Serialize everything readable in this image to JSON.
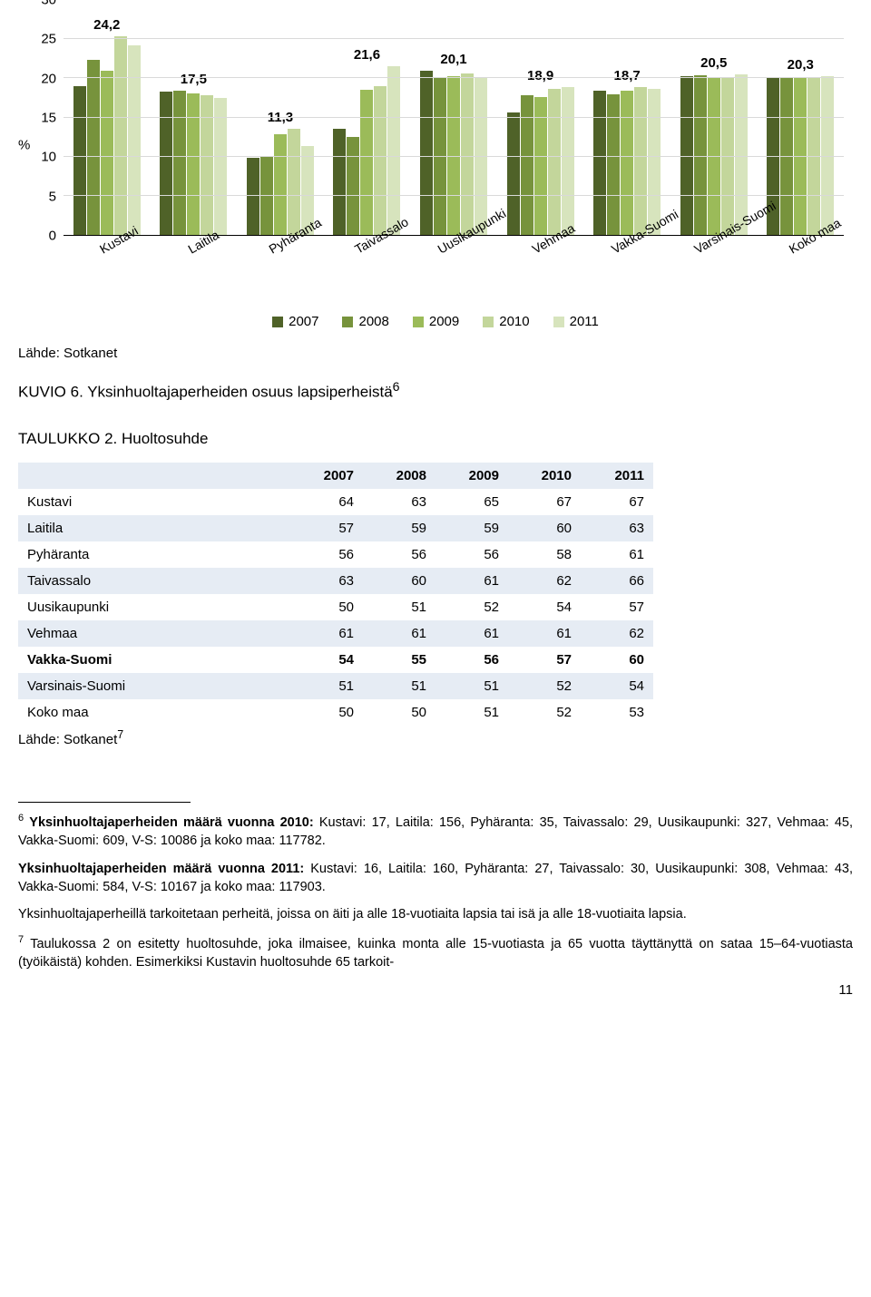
{
  "chart": {
    "type": "bar",
    "ylabel": "%",
    "ytick_step": 5,
    "ylim_max": 30,
    "grid_color": "#d9d9d9",
    "bar_colors": [
      "#4f6228",
      "#77933c",
      "#9bbb59",
      "#c3d69b",
      "#d7e4bd"
    ],
    "categories": [
      "Kustavi",
      "Laitila",
      "Pyhäranta",
      "Taivassalo",
      "Uusikaupunki",
      "Vehmaa",
      "Vakka-Suomi",
      "Varsinais-Suomi",
      "Koko maa"
    ],
    "series_names": [
      "2007",
      "2008",
      "2009",
      "2010",
      "2011"
    ],
    "groups": [
      {
        "label": "Kustavi",
        "label_value": "24,2",
        "values": [
          19.0,
          22.3,
          21.0,
          25.4,
          24.2
        ]
      },
      {
        "label": "Laitila",
        "label_value": "17,5",
        "values": [
          18.3,
          18.4,
          18.1,
          17.8,
          17.5
        ]
      },
      {
        "label": "Pyhäranta",
        "label_value": "11,3",
        "values": [
          9.9,
          10.1,
          12.9,
          13.5,
          11.3
        ]
      },
      {
        "label": "Taivassalo",
        "label_value": "21,6",
        "values": [
          13.5,
          12.5,
          18.5,
          19.0,
          21.6
        ]
      },
      {
        "label": "Uusikaupunki",
        "label_value": "20,1",
        "values": [
          21.0,
          20.2,
          20.3,
          20.6,
          20.1
        ]
      },
      {
        "label": "Vehmaa",
        "label_value": "18,9",
        "values": [
          15.6,
          17.8,
          17.6,
          18.6,
          18.9
        ]
      },
      {
        "label": "Vakka-Suomi",
        "label_value": "18,7",
        "values": [
          18.4,
          18.0,
          18.4,
          18.9,
          18.7
        ]
      },
      {
        "label": "Varsinais-Suomi",
        "label_value": "20,5",
        "values": [
          20.3,
          20.4,
          20.2,
          20.2,
          20.5
        ]
      },
      {
        "label": "Koko maa",
        "label_value": "20,3",
        "values": [
          20.0,
          20.0,
          20.1,
          20.1,
          20.3
        ]
      }
    ]
  },
  "legend": {
    "items": [
      "2007",
      "2008",
      "2009",
      "2010",
      "2011"
    ],
    "colors": [
      "#4f6228",
      "#77933c",
      "#9bbb59",
      "#c3d69b",
      "#d7e4bd"
    ]
  },
  "source_line": "Lähde: Sotkanet",
  "caption_prefix": "KUVIO 6. ",
  "caption_text": "Yksinhuoltajaperheiden osuus lapsiperheistä",
  "caption_sup": "6",
  "table_title": "TAULUKKO 2. Huoltosuhde",
  "table": {
    "header_bg": "#e6ecf4",
    "years": [
      "2007",
      "2008",
      "2009",
      "2010",
      "2011"
    ],
    "rows": [
      {
        "name": "Kustavi",
        "vals": [
          64,
          63,
          65,
          67,
          67
        ],
        "bold": false
      },
      {
        "name": "Laitila",
        "vals": [
          57,
          59,
          59,
          60,
          63
        ],
        "bold": false
      },
      {
        "name": "Pyhäranta",
        "vals": [
          56,
          56,
          56,
          58,
          61
        ],
        "bold": false
      },
      {
        "name": "Taivassalo",
        "vals": [
          63,
          60,
          61,
          62,
          66
        ],
        "bold": false
      },
      {
        "name": "Uusikaupunki",
        "vals": [
          50,
          51,
          52,
          54,
          57
        ],
        "bold": false
      },
      {
        "name": "Vehmaa",
        "vals": [
          61,
          61,
          61,
          61,
          62
        ],
        "bold": false
      },
      {
        "name": "Vakka-Suomi",
        "vals": [
          54,
          55,
          56,
          57,
          60
        ],
        "bold": true
      },
      {
        "name": "Varsinais-Suomi",
        "vals": [
          51,
          51,
          51,
          52,
          54
        ],
        "bold": false
      },
      {
        "name": "Koko maa",
        "vals": [
          50,
          50,
          51,
          52,
          53
        ],
        "bold": false
      }
    ]
  },
  "table_src": "Lähde: Sotkanet",
  "table_src_sup": "7",
  "fn1_sup": "6",
  "fn1_p1_bold": "Yksinhuoltajaperheiden määrä vuonna 2010:",
  "fn1_p1_rest": " Kustavi: 17, Laitila: 156, Pyhäranta: 35, Taivassalo: 29, Uusikaupunki: 327, Vehmaa: 45, Vakka-Suomi: 609, V-S: 10086 ja koko maa: 117782.",
  "fn1_p2_bold": "Yksinhuoltajaperheiden määrä vuonna 2011:",
  "fn1_p2_rest": " Kustavi: 16, Laitila: 160, Pyhäranta: 27, Taivassalo: 30, Uusikaupunki: 308, Vehmaa: 43, Vakka-Suomi: 584, V-S: 10167 ja koko maa: 117903.",
  "fn1_p3": "Yksinhuoltajaperheillä tarkoitetaan perheitä, joissa on äiti ja alle 18-vuotiaita lapsia tai isä ja alle 18-vuotiaita lapsia.",
  "fn2_sup": "7",
  "fn2_text": " Taulukossa 2 on esitetty huoltosuhde, joka ilmaisee, kuinka monta alle 15-vuotiasta ja 65 vuotta täyttänyttä on sataa 15–64-vuotiasta (työikäistä) kohden. Esimerkiksi Kustavin huoltosuhde 65 tarkoit-",
  "page_number": "11"
}
